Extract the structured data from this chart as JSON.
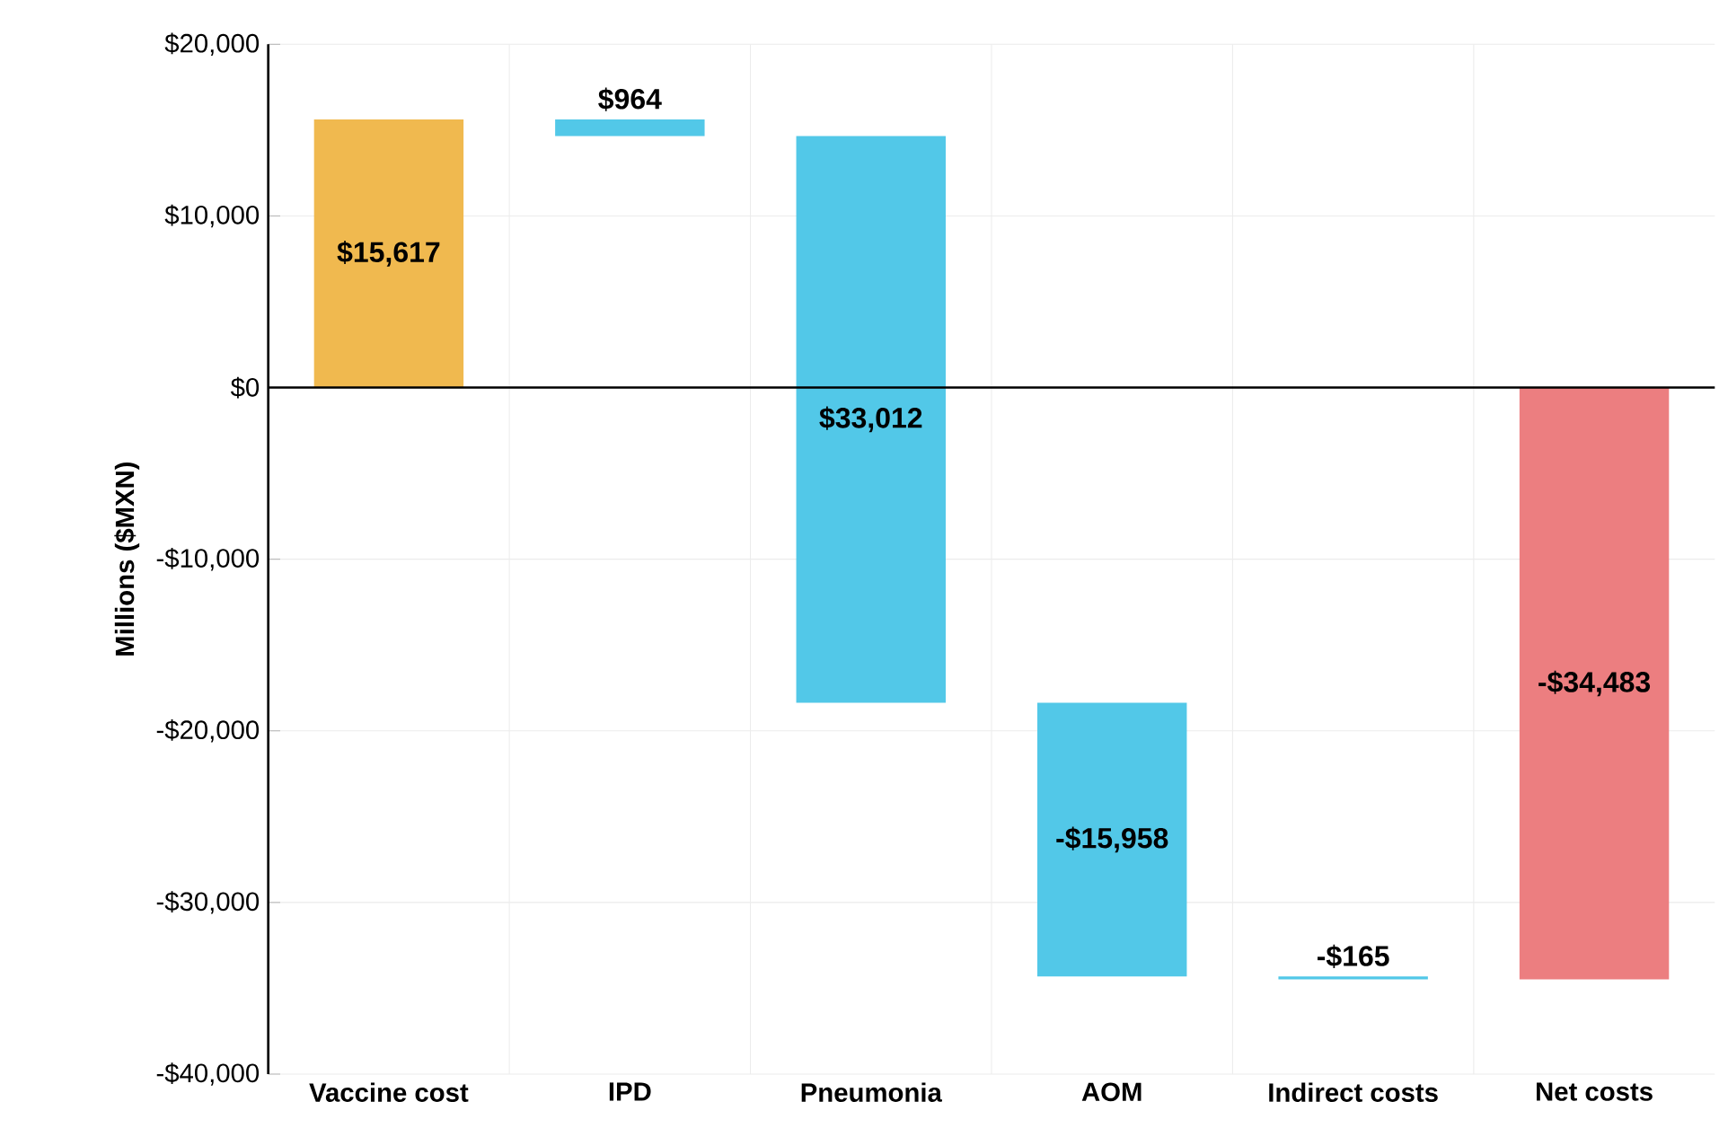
{
  "chart_data": {
    "type": "bar",
    "ylabel": "Millions ($MXN)",
    "categories": [
      "Vaccine cost",
      "IPD",
      "Pneumonia",
      "AOM",
      "Indirect costs",
      "Net costs"
    ],
    "values": [
      15617,
      -964,
      -33012,
      -15958,
      -165,
      -34483
    ],
    "base": [
      0,
      15617,
      14653,
      -18359,
      -34317,
      0
    ],
    "colors": [
      "#f0b94f",
      "#52c8e8",
      "#52c8e8",
      "#52c8e8",
      "#52c8e8",
      "#ec7e80"
    ],
    "value_labels": [
      "$15,617",
      "$964",
      "$33,012",
      "-$15,958",
      "-$165",
      "-$34,483"
    ],
    "ylim": [
      -40000,
      20000
    ],
    "yticks": [
      {
        "value": -40000,
        "label": "-$40,000"
      },
      {
        "value": -30000,
        "label": "-$30,000"
      },
      {
        "value": -20000,
        "label": "-$20,000"
      },
      {
        "value": -10000,
        "label": "-$10,000"
      },
      {
        "value": 0,
        "label": "$0"
      },
      {
        "value": 10000,
        "label": "$10,000"
      },
      {
        "value": 20000,
        "label": "$20,000"
      }
    ],
    "grid": true
  }
}
